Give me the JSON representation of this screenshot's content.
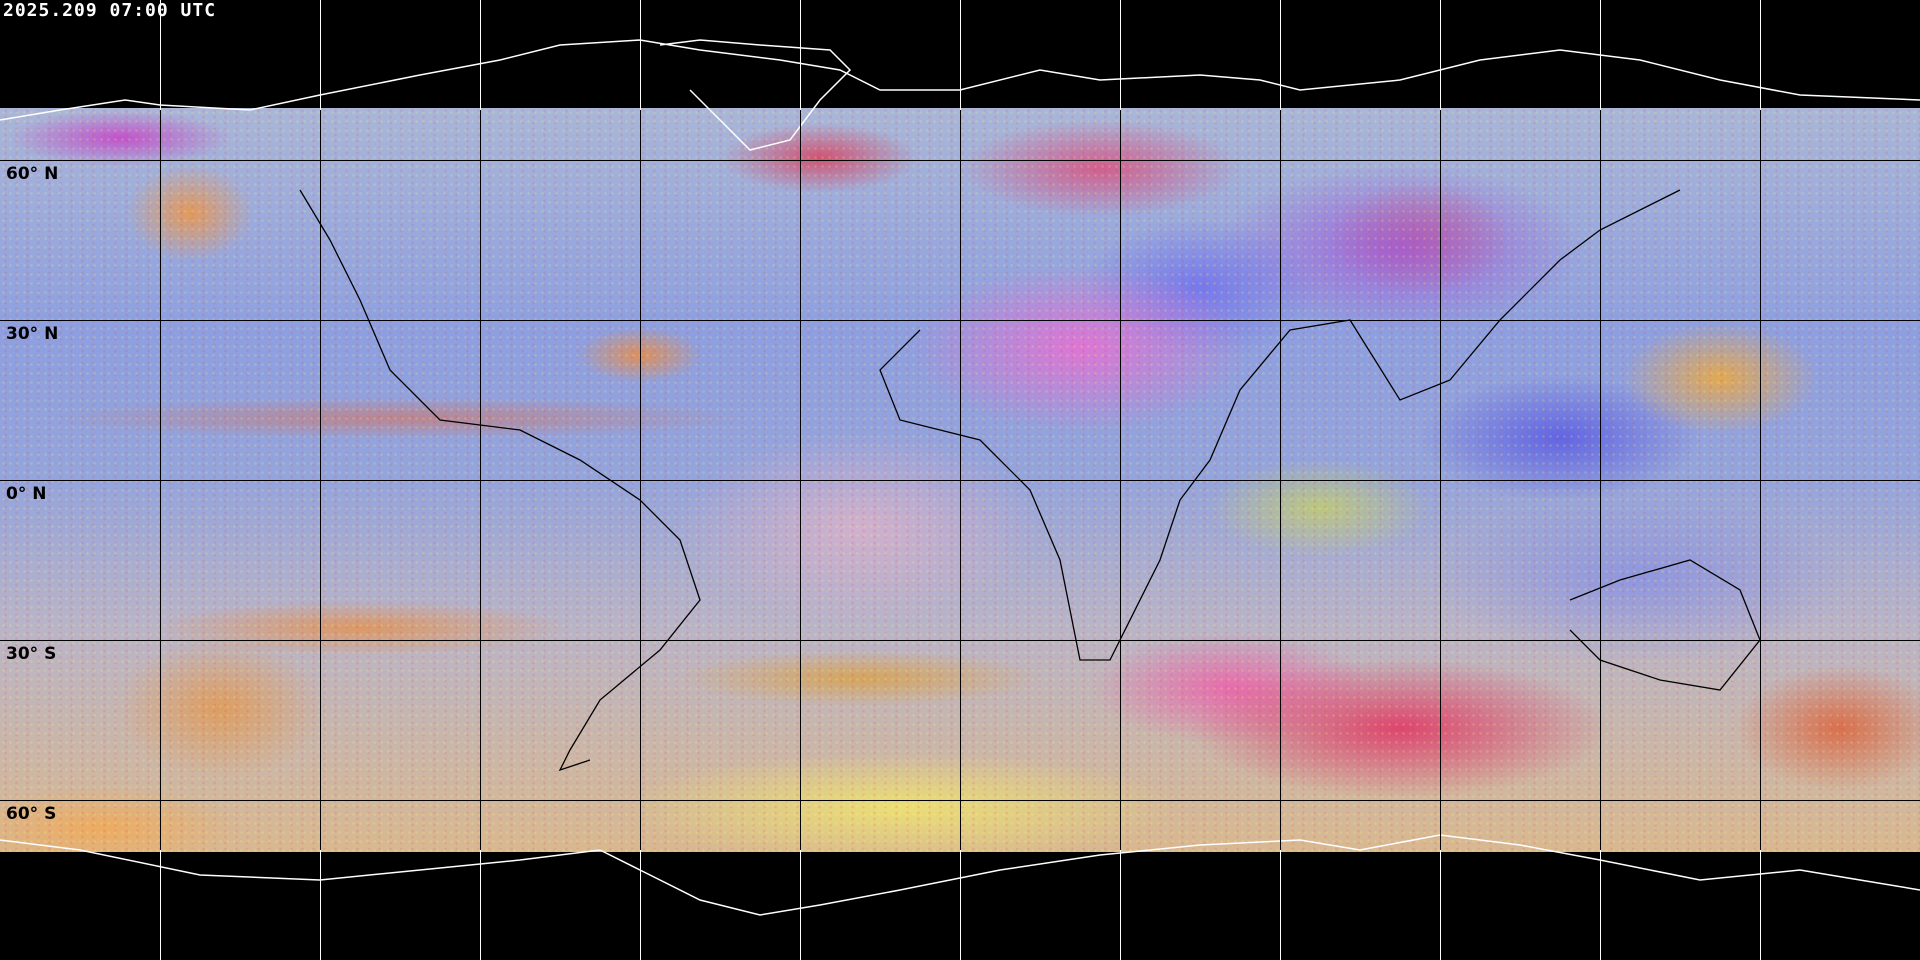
{
  "timestamp": "2025.209 07:00 UTC",
  "product": {
    "type": "global satellite RGB composite",
    "projection": "equirectangular",
    "grid_spacing_deg": 30
  },
  "latitude_labels": [
    {
      "lat": 60,
      "text": "60° N"
    },
    {
      "lat": 30,
      "text": "30° N"
    },
    {
      "lat": 0,
      "text": "0° N"
    },
    {
      "lat": -30,
      "text": "30° S"
    },
    {
      "lat": -60,
      "text": "60° S"
    }
  ],
  "longitude_lines_deg": [
    -150,
    -120,
    -90,
    -60,
    -30,
    0,
    30,
    60,
    90,
    120,
    150
  ],
  "colors": {
    "background": "#000000",
    "coastline_dark": "#000000",
    "coastline_polar": "#ffffff",
    "grid": "#000000"
  }
}
